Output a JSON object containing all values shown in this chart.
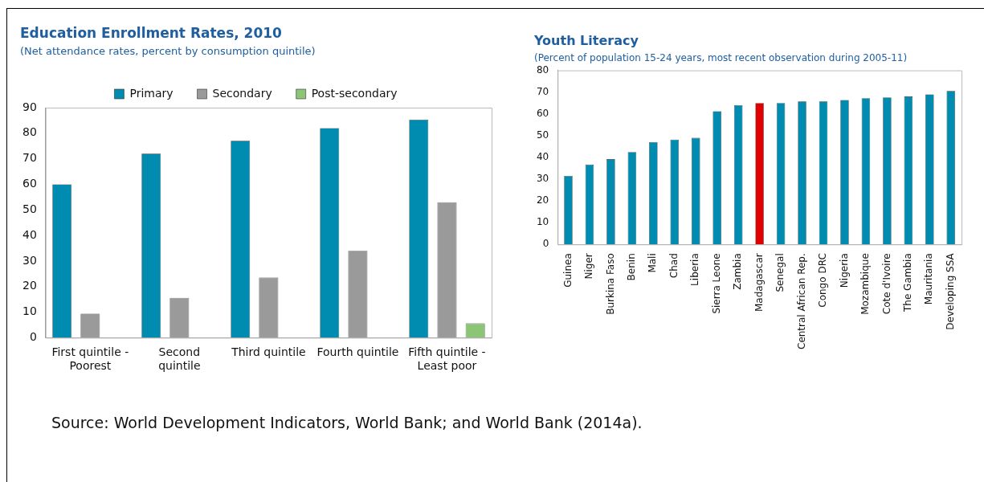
{
  "chart_data": [
    {
      "type": "bar",
      "title": "Education Enrollment Rates, 2010",
      "subtitle": "(Net attendance rates, percent by consumption quintile)",
      "categories": [
        [
          "First quintile -",
          "Poorest"
        ],
        [
          "Second",
          "quintile"
        ],
        "Third quintile",
        "Fourth quintile",
        [
          "Fifth quintile -",
          "Least poor"
        ]
      ],
      "series": [
        {
          "name": "Primary",
          "color": "#008bb0",
          "values": [
            60,
            72,
            77,
            82,
            85.3
          ]
        },
        {
          "name": "Secondary",
          "color": "#9a9a9a",
          "values": [
            9.4,
            15.6,
            23.5,
            34,
            53
          ]
        },
        {
          "name": "Post-secondary",
          "color": "#8cc576",
          "values": [
            null,
            null,
            null,
            0,
            5.6
          ]
        }
      ],
      "ylim": [
        0,
        90
      ],
      "yticks": [
        0,
        10,
        20,
        30,
        40,
        50,
        60,
        70,
        80,
        90
      ],
      "grid": false,
      "legend": "top",
      "annotations": [
        "Source: World Development Indicators, World Bank; and World Bank (2014a)."
      ]
    },
    {
      "type": "bar",
      "title": "Youth Literacy",
      "subtitle": "(Percent of population 15-24 years, most recent observation during 2005-11)",
      "categories": [
        "Guinea",
        "Niger",
        "Burkina Faso",
        "Benin",
        "Mali",
        "Chad",
        "Liberia",
        "Sierra Leone",
        "Zambia",
        "Madagascar",
        "Senegal",
        "Central African Rep.",
        "Congo DRC",
        "Nigeria",
        "Mozambique",
        "Cote d'Ivoire",
        "The Gambia",
        "Mauritania",
        "Developing SSA"
      ],
      "values": [
        31.5,
        36.7,
        39.2,
        42.5,
        47,
        48.2,
        49,
        61.2,
        64,
        65,
        65,
        65.7,
        65.7,
        66.4,
        67.2,
        67.6,
        68,
        69,
        70.5
      ],
      "colors": [
        "#008bb0",
        "#008bb0",
        "#008bb0",
        "#008bb0",
        "#008bb0",
        "#008bb0",
        "#008bb0",
        "#008bb0",
        "#008bb0",
        "#e00000",
        "#008bb0",
        "#008bb0",
        "#008bb0",
        "#008bb0",
        "#008bb0",
        "#008bb0",
        "#008bb0",
        "#008bb0",
        "#008bb0"
      ],
      "ylim": [
        0,
        80
      ],
      "yticks": [
        0,
        10,
        20,
        30,
        40,
        50,
        60,
        70,
        80
      ],
      "grid": false,
      "legend": false
    }
  ]
}
